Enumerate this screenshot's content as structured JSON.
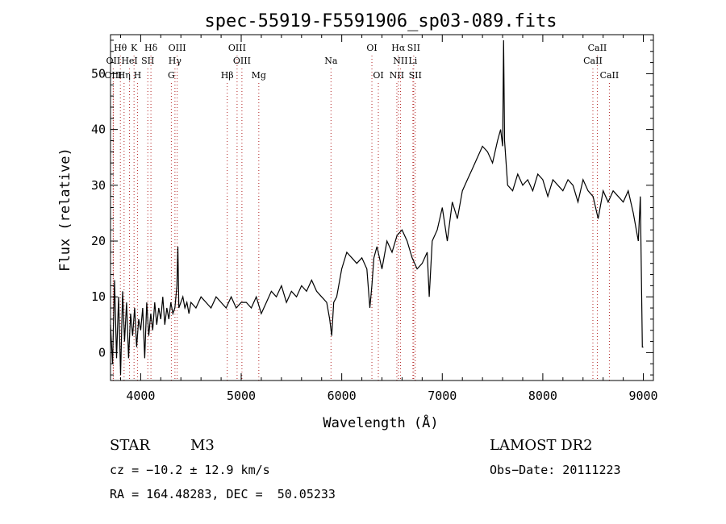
{
  "chart_data": {
    "type": "line",
    "title": "spec-55919-F5591906_sp03-089.fits",
    "xlabel": "Wavelength (Å)",
    "ylabel": "Flux (relative)",
    "xlim": [
      3700,
      9100
    ],
    "ylim": [
      -5,
      57
    ],
    "xticks": [
      4000,
      5000,
      6000,
      7000,
      8000,
      9000
    ],
    "yticks": [
      0,
      10,
      20,
      30,
      40,
      50
    ],
    "grid": false,
    "series": [
      {
        "color": "#000000",
        "x": [
          3700,
          3720,
          3740,
          3760,
          3780,
          3800,
          3820,
          3840,
          3860,
          3880,
          3900,
          3920,
          3940,
          3960,
          3980,
          4000,
          4020,
          4040,
          4060,
          4080,
          4100,
          4120,
          4140,
          4160,
          4180,
          4200,
          4220,
          4240,
          4260,
          4280,
          4300,
          4320,
          4340,
          4360,
          4370,
          4380,
          4400,
          4420,
          4440,
          4460,
          4480,
          4500,
          4550,
          4600,
          4650,
          4700,
          4750,
          4800,
          4850,
          4900,
          4950,
          5000,
          5050,
          5100,
          5150,
          5200,
          5250,
          5300,
          5350,
          5400,
          5450,
          5500,
          5550,
          5600,
          5650,
          5700,
          5750,
          5800,
          5850,
          5880,
          5900,
          5920,
          5950,
          6000,
          6050,
          6100,
          6150,
          6200,
          6250,
          6280,
          6300,
          6320,
          6350,
          6400,
          6450,
          6500,
          6550,
          6600,
          6650,
          6700,
          6750,
          6800,
          6850,
          6870,
          6900,
          6950,
          7000,
          7050,
          7100,
          7150,
          7200,
          7250,
          7300,
          7350,
          7400,
          7450,
          7500,
          7550,
          7580,
          7600,
          7610,
          7620,
          7650,
          7700,
          7750,
          7800,
          7850,
          7900,
          7950,
          8000,
          8050,
          8100,
          8150,
          8200,
          8250,
          8300,
          8350,
          8400,
          8450,
          8500,
          8550,
          8600,
          8650,
          8700,
          8750,
          8800,
          8850,
          8900,
          8950,
          8970,
          8990,
          9000
        ],
        "y": [
          5,
          -2,
          13,
          -1,
          10,
          -4,
          11,
          2,
          9,
          -1,
          7,
          3,
          8,
          1,
          6,
          4,
          8,
          -1,
          9,
          3,
          7,
          4,
          9,
          5,
          8,
          6,
          10,
          5,
          8,
          6,
          9,
          7,
          8,
          12,
          19,
          8,
          9,
          10,
          8,
          9,
          7,
          9,
          8,
          10,
          9,
          8,
          10,
          9,
          8,
          10,
          8,
          9,
          9,
          8,
          10,
          7,
          9,
          11,
          10,
          12,
          9,
          11,
          10,
          12,
          11,
          13,
          11,
          10,
          9,
          6,
          3,
          9,
          10,
          15,
          18,
          17,
          16,
          17,
          15,
          8,
          12,
          17,
          19,
          15,
          20,
          18,
          21,
          22,
          20,
          17,
          15,
          16,
          18,
          10,
          20,
          22,
          26,
          20,
          27,
          24,
          29,
          31,
          33,
          35,
          37,
          36,
          34,
          38,
          40,
          37,
          56,
          38,
          30,
          29,
          32,
          30,
          31,
          29,
          32,
          31,
          28,
          31,
          30,
          29,
          31,
          30,
          27,
          31,
          29,
          28,
          24,
          29,
          27,
          29,
          28,
          27,
          29,
          25,
          20,
          28,
          1,
          1
        ]
      }
    ],
    "lines": [
      {
        "label": "Hθ",
        "x": 3798,
        "row": 1,
        "color": "#b22222"
      },
      {
        "label": "K",
        "x": 3934,
        "row": 1,
        "color": "#b22222"
      },
      {
        "label": "Hδ",
        "x": 4102,
        "row": 1,
        "color": "#b22222"
      },
      {
        "label": "OIII",
        "x": 4363,
        "row": 1,
        "color": "#b22222"
      },
      {
        "label": "OIII",
        "x": 4959,
        "row": 1,
        "color": "#b22222"
      },
      {
        "label": "OI",
        "x": 6300,
        "row": 1,
        "color": "#b22222"
      },
      {
        "label": "Hα",
        "x": 6563,
        "row": 1,
        "color": "#b22222"
      },
      {
        "label": "SII",
        "x": 6716,
        "row": 1,
        "color": "#b22222"
      },
      {
        "label": "CaII",
        "x": 8542,
        "row": 1,
        "color": "#b22222"
      },
      {
        "label": "OII",
        "x": 3727,
        "row": 2,
        "color": "#b22222"
      },
      {
        "label": "HeI",
        "x": 3889,
        "row": 2,
        "color": "#b22222"
      },
      {
        "label": "SII",
        "x": 4071,
        "row": 2,
        "color": "#b22222"
      },
      {
        "label": "Hγ",
        "x": 4341,
        "row": 2,
        "color": "#b22222"
      },
      {
        "label": "OIII",
        "x": 5007,
        "row": 2,
        "color": "#b22222"
      },
      {
        "label": "Na",
        "x": 5893,
        "row": 2,
        "color": "#b22222"
      },
      {
        "label": "NII",
        "x": 6584,
        "row": 2,
        "color": "#b22222"
      },
      {
        "label": "Li",
        "x": 6708,
        "row": 2,
        "color": "#b22222"
      },
      {
        "label": "CaII",
        "x": 8498,
        "row": 2,
        "color": "#b22222"
      },
      {
        "label": "OIII",
        "x": 3727,
        "row": 3,
        "color": "#b22222"
      },
      {
        "label": "Hη",
        "x": 3835,
        "row": 3,
        "color": "#b22222"
      },
      {
        "label": "H",
        "x": 3968,
        "row": 3,
        "color": "#b22222"
      },
      {
        "label": "G",
        "x": 4305,
        "row": 3,
        "color": "#b22222"
      },
      {
        "label": "Hβ",
        "x": 4861,
        "row": 3,
        "color": "#b22222"
      },
      {
        "label": "Mg",
        "x": 5175,
        "row": 3,
        "color": "#b22222"
      },
      {
        "label": "OI",
        "x": 6364,
        "row": 3,
        "color": "#b22222"
      },
      {
        "label": "NII",
        "x": 6548,
        "row": 3,
        "color": "#b22222"
      },
      {
        "label": "SII",
        "x": 6731,
        "row": 3,
        "color": "#b22222"
      },
      {
        "label": "CaII",
        "x": 8662,
        "row": 3,
        "color": "#b22222"
      }
    ]
  },
  "footer": {
    "object_type": "STAR",
    "subclass": "M3",
    "survey": "LAMOST DR2",
    "redshift": "cz = −10.2 ± 12.9 km/s",
    "obs_date": "Obs−Date: 20111223",
    "coords": "RA = 164.48283, DEC =  50.05233"
  }
}
